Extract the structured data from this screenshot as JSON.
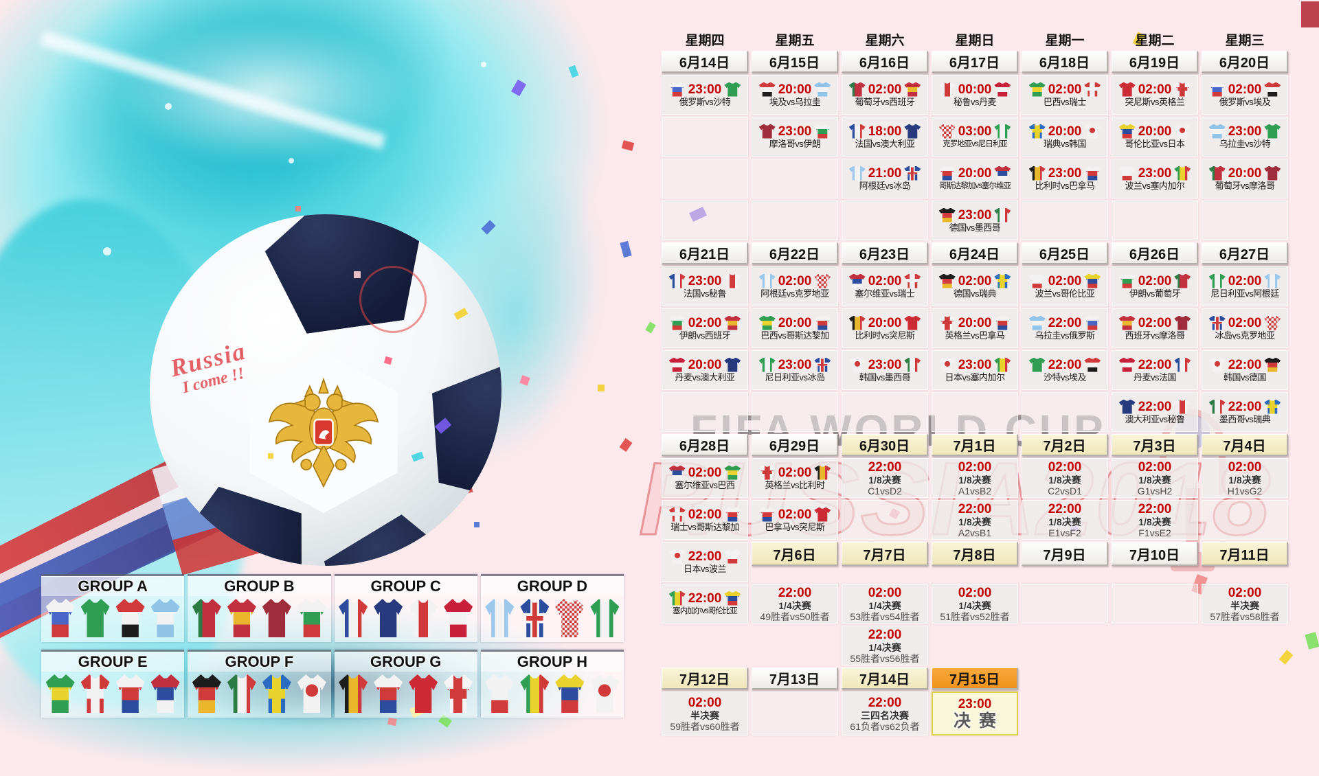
{
  "decor": {
    "watermark_fifa": "FIFA WORLD CUP",
    "watermark_russia": "RUSSIA2018",
    "ball_text_line1": "Russia",
    "ball_text_line2": "I come !!"
  },
  "colors": {
    "time_red": "#c40000",
    "date_orange": "#f0931a",
    "date_cream": "#f6efcd",
    "teal_splash": "#3fcedc",
    "pink_background": "#fce9ec"
  },
  "calendar": {
    "rows": [
      {
        "h": "wd",
        "cells": [
          {
            "k": "w",
            "l": "星期四"
          },
          {
            "k": "w",
            "l": "星期五"
          },
          {
            "k": "w",
            "l": "星期六"
          },
          {
            "k": "w",
            "l": "星期日"
          },
          {
            "k": "w",
            "l": "星期一"
          },
          {
            "k": "w",
            "l": "星期二"
          },
          {
            "k": "w",
            "l": "星期三"
          }
        ]
      },
      {
        "h": "date",
        "cells": [
          {
            "k": "d",
            "l": "6月14日",
            "s": "white"
          },
          {
            "k": "d",
            "l": "6月15日",
            "s": "white"
          },
          {
            "k": "d",
            "l": "6月16日",
            "s": "white"
          },
          {
            "k": "d",
            "l": "6月17日",
            "s": "white"
          },
          {
            "k": "d",
            "l": "6月18日",
            "s": "white"
          },
          {
            "k": "d",
            "l": "6月19日",
            "s": "white"
          },
          {
            "k": "d",
            "l": "6月20日",
            "s": "white"
          }
        ]
      },
      {
        "h": "match",
        "cells": [
          {
            "k": "m",
            "t": "23:00",
            "a": "俄罗斯",
            "b": "沙特"
          },
          {
            "k": "m",
            "t": "20:00",
            "a": "埃及",
            "b": "乌拉圭"
          },
          {
            "k": "m",
            "t": "02:00",
            "a": "葡萄牙",
            "b": "西班牙"
          },
          {
            "k": "m",
            "t": "00:00",
            "a": "秘鲁",
            "b": "丹麦"
          },
          {
            "k": "m",
            "t": "02:00",
            "a": "巴西",
            "b": "瑞士"
          },
          {
            "k": "m",
            "t": "02:00",
            "a": "突尼斯",
            "b": "英格兰"
          },
          {
            "k": "m",
            "t": "02:00",
            "a": "俄罗斯",
            "b": "埃及"
          }
        ]
      },
      {
        "h": "match",
        "cells": [
          {
            "k": "e"
          },
          {
            "k": "m",
            "t": "23:00",
            "a": "摩洛哥",
            "b": "伊朗"
          },
          {
            "k": "m",
            "t": "18:00",
            "a": "法国",
            "b": "澳大利亚"
          },
          {
            "k": "m",
            "t": "03:00",
            "a": "克罗地亚",
            "b": "尼日利亚"
          },
          {
            "k": "m",
            "t": "20:00",
            "a": "瑞典",
            "b": "韩国"
          },
          {
            "k": "m",
            "t": "20:00",
            "a": "哥伦比亚",
            "b": "日本"
          },
          {
            "k": "m",
            "t": "23:00",
            "a": "乌拉圭",
            "b": "沙特"
          }
        ]
      },
      {
        "h": "match",
        "cells": [
          {
            "k": "e"
          },
          {
            "k": "e"
          },
          {
            "k": "m",
            "t": "21:00",
            "a": "阿根廷",
            "b": "冰岛"
          },
          {
            "k": "m",
            "t": "20:00",
            "a": "哥斯达黎加",
            "b": "塞尔维亚"
          },
          {
            "k": "m",
            "t": "23:00",
            "a": "比利时",
            "b": "巴拿马"
          },
          {
            "k": "m",
            "t": "23:00",
            "a": "波兰",
            "b": "塞内加尔"
          },
          {
            "k": "m",
            "t": "20:00",
            "a": "葡萄牙",
            "b": "摩洛哥"
          }
        ]
      },
      {
        "h": "match",
        "cells": [
          {
            "k": "e"
          },
          {
            "k": "e"
          },
          {
            "k": "e"
          },
          {
            "k": "m",
            "t": "23:00",
            "a": "德国",
            "b": "墨西哥"
          },
          {
            "k": "e"
          },
          {
            "k": "e"
          },
          {
            "k": "e"
          }
        ]
      },
      {
        "h": "date",
        "cells": [
          {
            "k": "d",
            "l": "6月21日",
            "s": "white"
          },
          {
            "k": "d",
            "l": "6月22日",
            "s": "white"
          },
          {
            "k": "d",
            "l": "6月23日",
            "s": "white"
          },
          {
            "k": "d",
            "l": "6月24日",
            "s": "white"
          },
          {
            "k": "d",
            "l": "6月25日",
            "s": "white"
          },
          {
            "k": "d",
            "l": "6月26日",
            "s": "white"
          },
          {
            "k": "d",
            "l": "6月27日",
            "s": "white"
          }
        ]
      },
      {
        "h": "match",
        "cells": [
          {
            "k": "m",
            "t": "23:00",
            "a": "法国",
            "b": "秘鲁"
          },
          {
            "k": "m",
            "t": "02:00",
            "a": "阿根廷",
            "b": "克罗地亚"
          },
          {
            "k": "m",
            "t": "02:00",
            "a": "塞尔维亚",
            "b": "瑞士"
          },
          {
            "k": "m",
            "t": "02:00",
            "a": "德国",
            "b": "瑞典"
          },
          {
            "k": "m",
            "t": "02:00",
            "a": "波兰",
            "b": "哥伦比亚"
          },
          {
            "k": "m",
            "t": "02:00",
            "a": "伊朗",
            "b": "葡萄牙"
          },
          {
            "k": "m",
            "t": "02:00",
            "a": "尼日利亚",
            "b": "阿根廷"
          }
        ]
      },
      {
        "h": "match",
        "cells": [
          {
            "k": "m",
            "t": "02:00",
            "a": "伊朗",
            "b": "西班牙"
          },
          {
            "k": "m",
            "t": "20:00",
            "a": "巴西",
            "b": "哥斯达黎加"
          },
          {
            "k": "m",
            "t": "20:00",
            "a": "比利时",
            "b": "突尼斯"
          },
          {
            "k": "m",
            "t": "20:00",
            "a": "英格兰",
            "b": "巴拿马"
          },
          {
            "k": "m",
            "t": "22:00",
            "a": "乌拉圭",
            "b": "俄罗斯"
          },
          {
            "k": "m",
            "t": "02:00",
            "a": "西班牙",
            "b": "摩洛哥"
          },
          {
            "k": "m",
            "t": "02:00",
            "a": "冰岛",
            "b": "克罗地亚"
          }
        ]
      },
      {
        "h": "match",
        "cells": [
          {
            "k": "m",
            "t": "20:00",
            "a": "丹麦",
            "b": "澳大利亚"
          },
          {
            "k": "m",
            "t": "23:00",
            "a": "尼日利亚",
            "b": "冰岛"
          },
          {
            "k": "m",
            "t": "23:00",
            "a": "韩国",
            "b": "墨西哥"
          },
          {
            "k": "m",
            "t": "23:00",
            "a": "日本",
            "b": "塞内加尔"
          },
          {
            "k": "m",
            "t": "22:00",
            "a": "沙特",
            "b": "埃及"
          },
          {
            "k": "m",
            "t": "22:00",
            "a": "丹麦",
            "b": "法国"
          },
          {
            "k": "m",
            "t": "22:00",
            "a": "韩国",
            "b": "德国"
          }
        ]
      },
      {
        "h": "match",
        "cells": [
          {
            "k": "e"
          },
          {
            "k": "e"
          },
          {
            "k": "e"
          },
          {
            "k": "e"
          },
          {
            "k": "e"
          },
          {
            "k": "m",
            "t": "22:00",
            "a": "澳大利亚",
            "b": "秘鲁"
          },
          {
            "k": "m",
            "t": "22:00",
            "a": "墨西哥",
            "b": "瑞典"
          }
        ]
      },
      {
        "h": "date",
        "cells": [
          {
            "k": "d",
            "l": "6月28日",
            "s": "white"
          },
          {
            "k": "d",
            "l": "6月29日",
            "s": "white"
          },
          {
            "k": "d",
            "l": "6月30日",
            "s": "cream"
          },
          {
            "k": "d",
            "l": "7月1日",
            "s": "cream"
          },
          {
            "k": "d",
            "l": "7月2日",
            "s": "cream"
          },
          {
            "k": "d",
            "l": "7月3日",
            "s": "cream"
          },
          {
            "k": "d",
            "l": "7月4日",
            "s": "cream"
          }
        ]
      },
      {
        "h": "match",
        "cells": [
          {
            "k": "m",
            "t": "02:00",
            "a": "塞尔维亚",
            "b": "巴西"
          },
          {
            "k": "m",
            "t": "02:00",
            "a": "英格兰",
            "b": "比利时"
          },
          {
            "k": "k",
            "t": "22:00",
            "s": "1/8决赛",
            "c": "C1vsD2"
          },
          {
            "k": "k",
            "t": "02:00",
            "s": "1/8决赛",
            "c": "A1vsB2"
          },
          {
            "k": "k",
            "t": "02:00",
            "s": "1/8决赛",
            "c": "C2vsD1"
          },
          {
            "k": "k",
            "t": "02:00",
            "s": "1/8决赛",
            "c": "G1vsH2"
          },
          {
            "k": "k",
            "t": "02:00",
            "s": "1/8决赛",
            "c": "H1vsG2"
          }
        ]
      },
      {
        "h": "match",
        "cells": [
          {
            "k": "m",
            "t": "02:00",
            "a": "瑞士",
            "b": "哥斯达黎加"
          },
          {
            "k": "m",
            "t": "02:00",
            "a": "巴拿马",
            "b": "突尼斯"
          },
          {
            "k": "e"
          },
          {
            "k": "k",
            "t": "22:00",
            "s": "1/8决赛",
            "c": "A2vsB1"
          },
          {
            "k": "k",
            "t": "22:00",
            "s": "1/8决赛",
            "c": "E1vsF2"
          },
          {
            "k": "k",
            "t": "22:00",
            "s": "1/8决赛",
            "c": "F1vsE2"
          },
          {
            "k": "e"
          }
        ]
      },
      {
        "h": "match",
        "cells": [
          {
            "k": "m",
            "t": "22:00",
            "a": "日本",
            "b": "波兰"
          },
          {
            "k": "d",
            "l": "7月6日",
            "s": "cream"
          },
          {
            "k": "d",
            "l": "7月7日",
            "s": "cream"
          },
          {
            "k": "d",
            "l": "7月8日",
            "s": "cream"
          },
          {
            "k": "d",
            "l": "7月9日",
            "s": "white"
          },
          {
            "k": "d",
            "l": "7月10日",
            "s": "white"
          },
          {
            "k": "d",
            "l": "7月11日",
            "s": "cream"
          }
        ]
      },
      {
        "h": "match",
        "cells": [
          {
            "k": "m",
            "t": "22:00",
            "a": "塞内加尔",
            "b": "哥伦比亚"
          },
          {
            "k": "k",
            "t": "22:00",
            "s": "1/4决赛",
            "c": "49胜者vs50胜者"
          },
          {
            "k": "k",
            "t": "02:00",
            "s": "1/4决赛",
            "c": "53胜者vs54胜者"
          },
          {
            "k": "k",
            "t": "02:00",
            "s": "1/4决赛",
            "c": "51胜者vs52胜者"
          },
          {
            "k": "e"
          },
          {
            "k": "e"
          },
          {
            "k": "k",
            "t": "02:00",
            "s": "半决赛",
            "c": "57胜者vs58胜者"
          }
        ]
      },
      {
        "h": "match",
        "cells": [
          null,
          null,
          {
            "k": "k",
            "t": "22:00",
            "s": "1/4决赛",
            "c": "55胜者vs56胜者"
          },
          null,
          null,
          null,
          null
        ]
      },
      {
        "h": "date",
        "cells": [
          {
            "k": "d",
            "l": "7月12日",
            "s": "cream"
          },
          {
            "k": "d",
            "l": "7月13日",
            "s": "white"
          },
          {
            "k": "d",
            "l": "7月14日",
            "s": "cream"
          },
          {
            "k": "d",
            "l": "7月15日",
            "s": "orange"
          },
          null,
          null,
          null
        ]
      },
      {
        "h": "final",
        "cells": [
          {
            "k": "k",
            "t": "02:00",
            "s": "半决赛",
            "c": "59胜者vs60胜者"
          },
          {
            "k": "e"
          },
          {
            "k": "k",
            "t": "22:00",
            "s": "三四名决赛",
            "c": "61负者vs62负者"
          },
          {
            "k": "f",
            "t": "23:00",
            "l": "决赛"
          },
          null,
          null,
          null
        ]
      }
    ]
  },
  "groups": [
    {
      "name": "GROUP A",
      "teams": [
        "俄罗斯",
        "沙特",
        "埃及",
        "乌拉圭"
      ]
    },
    {
      "name": "GROUP B",
      "teams": [
        "葡萄牙",
        "西班牙",
        "摩洛哥",
        "伊朗"
      ]
    },
    {
      "name": "GROUP C",
      "teams": [
        "法国",
        "澳大利亚",
        "秘鲁",
        "丹麦"
      ]
    },
    {
      "name": "GROUP D",
      "teams": [
        "阿根廷",
        "冰岛",
        "克罗地亚",
        "尼日利亚"
      ]
    },
    {
      "name": "GROUP E",
      "teams": [
        "巴西",
        "瑞士",
        "哥斯达黎加",
        "塞尔维亚"
      ]
    },
    {
      "name": "GROUP F",
      "teams": [
        "德国",
        "墨西哥",
        "瑞典",
        "韩国"
      ]
    },
    {
      "name": "GROUP G",
      "teams": [
        "比利时",
        "巴拿马",
        "突尼斯",
        "英格兰"
      ]
    },
    {
      "name": "GROUP H",
      "teams": [
        "波兰",
        "塞内加尔",
        "哥伦比亚",
        "日本"
      ]
    }
  ],
  "team_styles": {
    "俄罗斯": {
      "t": "h",
      "c": [
        "#f2f2f2",
        "#4967c9",
        "#d03a3a"
      ]
    },
    "沙特": {
      "t": "solid",
      "c": [
        "#2f9e53"
      ]
    },
    "埃及": {
      "t": "h",
      "c": [
        "#d03a3a",
        "#f2f2f2",
        "#1d1d1d"
      ]
    },
    "乌拉圭": {
      "t": "h",
      "c": [
        "#8fc3e8",
        "#f2f2f2",
        "#8fc3e8"
      ]
    },
    "葡萄牙": {
      "t": "v",
      "c": [
        "#2c7a44",
        "#c23040",
        "#c23040"
      ]
    },
    "西班牙": {
      "t": "h",
      "c": [
        "#c23040",
        "#e9b62c",
        "#c23040"
      ]
    },
    "摩洛哥": {
      "t": "solid",
      "c": [
        "#9e2c3a"
      ]
    },
    "伊朗": {
      "t": "h",
      "c": [
        "#f2f2f2",
        "#2f9e53",
        "#d03a3a"
      ]
    },
    "法国": {
      "t": "v",
      "c": [
        "#2c4d9e",
        "#f2f2f2",
        "#d03a3a"
      ]
    },
    "澳大利亚": {
      "t": "solid",
      "c": [
        "#273a7d"
      ]
    },
    "秘鲁": {
      "t": "v",
      "c": [
        "#f2f2f2",
        "#d03a3a",
        "#f2f2f2"
      ]
    },
    "丹麦": {
      "t": "h",
      "c": [
        "#c8203a",
        "#f2f2f2",
        "#c8203a"
      ]
    },
    "阿根廷": {
      "t": "v",
      "c": [
        "#9cc8ec",
        "#f2f2f2",
        "#9cc8ec"
      ]
    },
    "冰岛": {
      "t": "cross",
      "c": [
        "#2c4d9e",
        "#f2f2f2",
        "#d03a3a"
      ]
    },
    "克罗地亚": {
      "t": "check",
      "c": [
        "#d03a3a",
        "#f2f2f2"
      ]
    },
    "尼日利亚": {
      "t": "v",
      "c": [
        "#2f9e53",
        "#f2f2f2",
        "#2f9e53"
      ]
    },
    "巴西": {
      "t": "h",
      "c": [
        "#2f9e53",
        "#e9d22c",
        "#2f9e53"
      ]
    },
    "瑞士": {
      "t": "cross",
      "c": [
        "#d03a3a",
        "#f2f2f2",
        "#f2f2f2"
      ]
    },
    "哥斯达黎加": {
      "t": "h",
      "c": [
        "#f2f2f2",
        "#d03a3a",
        "#2c4d9e"
      ]
    },
    "塞尔维亚": {
      "t": "h",
      "c": [
        "#c23040",
        "#2c4d9e",
        "#f2f2f2"
      ]
    },
    "德国": {
      "t": "h",
      "c": [
        "#1d1d1d",
        "#d03a3a",
        "#e9b62c"
      ]
    },
    "墨西哥": {
      "t": "v",
      "c": [
        "#2c7a44",
        "#f2f2f2",
        "#d03a3a"
      ]
    },
    "瑞典": {
      "t": "cross",
      "c": [
        "#2c6bc2",
        "#e9d22c",
        "#e9d22c"
      ]
    },
    "韩国": {
      "t": "dot",
      "c": [
        "#f2f2f2",
        "#d03a3a"
      ]
    },
    "比利时": {
      "t": "v",
      "c": [
        "#1d1d1d",
        "#e9b62c",
        "#d03a3a"
      ]
    },
    "巴拿马": {
      "t": "h",
      "c": [
        "#f2f2f2",
        "#d03a3a",
        "#2c4d9e"
      ]
    },
    "突尼斯": {
      "t": "solid",
      "c": [
        "#cc2b36"
      ]
    },
    "英格兰": {
      "t": "cross",
      "c": [
        "#f5f5f5",
        "#d03a3a",
        "#d03a3a"
      ]
    },
    "波兰": {
      "t": "h",
      "c": [
        "#f2f2f2",
        "#f2f2f2",
        "#d03a3a"
      ]
    },
    "塞内加尔": {
      "t": "v",
      "c": [
        "#2f9e53",
        "#e9d22c",
        "#d03a3a"
      ]
    },
    "哥伦比亚": {
      "t": "h",
      "c": [
        "#e9d22c",
        "#2c4d9e",
        "#d03a3a"
      ]
    },
    "日本": {
      "t": "dot",
      "c": [
        "#f2f2f2",
        "#d03a3a"
      ]
    }
  }
}
